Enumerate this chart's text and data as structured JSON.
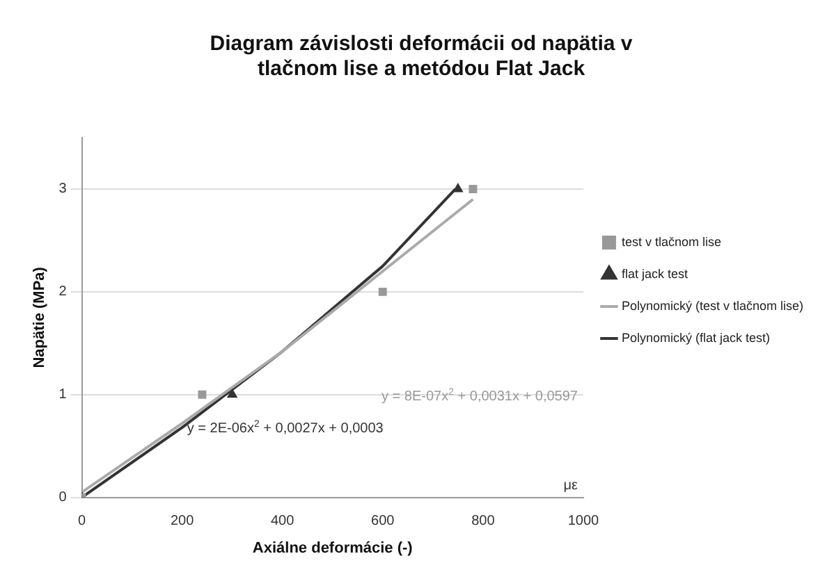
{
  "chart_data": {
    "type": "scatter",
    "title": "Diagram závislosti deformácii od napätia v tlačnom lise a metódou Flat Jack",
    "xlabel": "Axiálne deformácie (-)",
    "ylabel": "Napätie (MPa)",
    "xlim": [
      0,
      1000
    ],
    "xticks": [
      0,
      200,
      400,
      600,
      800,
      1000
    ],
    "ylim": [
      0,
      3.5
    ],
    "yticks": [
      0,
      1,
      2,
      3
    ],
    "grid": "y",
    "legend": "right",
    "annotations": [
      "y = 8E-07x$^{2}$ + 0,0031x + 0,0597",
      "y = 2E-06x$^{2}$ + 0,0027x + 0,0003",
      "με"
    ],
    "series": [
      {
        "name": "test v tlačnom lise",
        "marker": "square",
        "color": "#999999",
        "x": [
          0,
          240,
          600,
          780
        ],
        "values": [
          0,
          1,
          2,
          3
        ]
      },
      {
        "name": "flat jack test",
        "marker": "triangle",
        "color": "#333333",
        "x": [
          0,
          300,
          750
        ],
        "values": [
          0,
          1,
          3
        ]
      },
      {
        "name": "Polynomický (test v tlačnom lise)",
        "type": "line",
        "marker": "none",
        "color": "#aaaaaa",
        "x": [
          0,
          200,
          400,
          600,
          780
        ],
        "values": [
          0.05,
          0.72,
          1.42,
          2.2,
          2.9
        ]
      },
      {
        "name": "Polynomický (flat jack test)",
        "type": "line",
        "marker": "none",
        "color": "#333333",
        "x": [
          0,
          200,
          400,
          600,
          745
        ],
        "values": [
          0,
          0.68,
          1.42,
          2.25,
          3
        ]
      }
    ]
  }
}
